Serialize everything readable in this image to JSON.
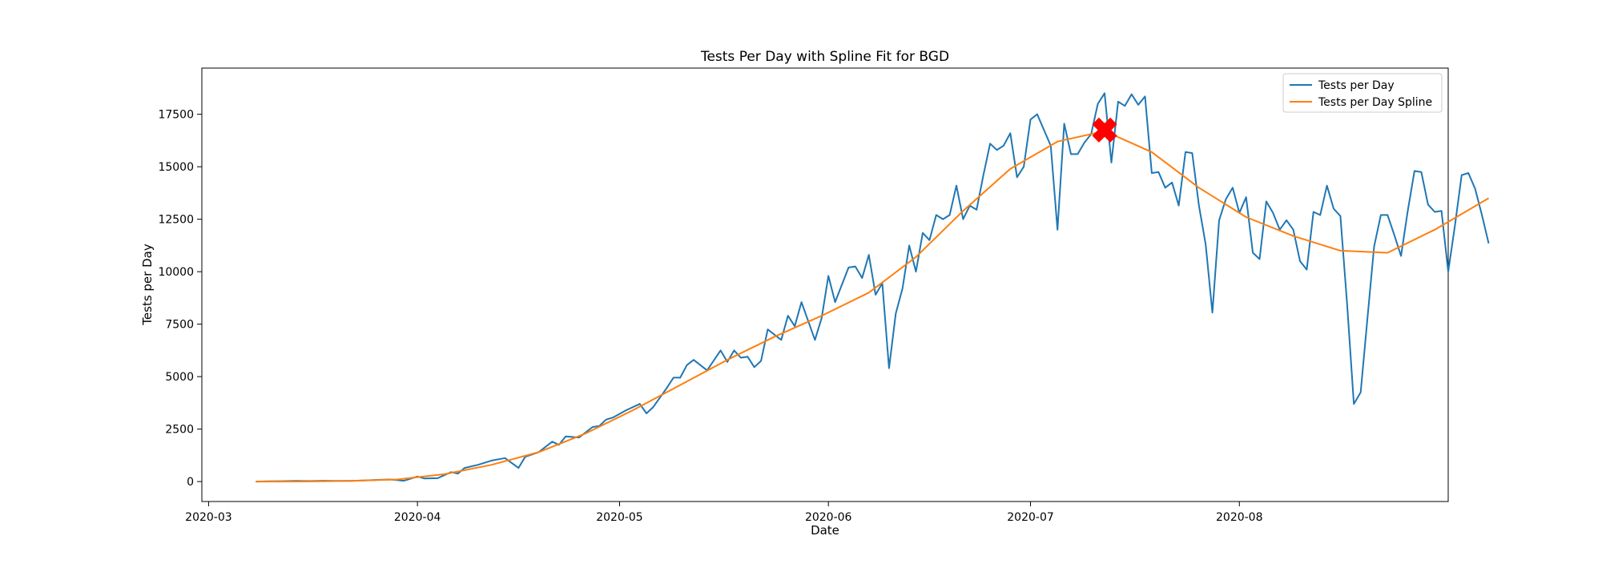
{
  "chart_data": {
    "type": "line",
    "title": "Tests Per Day with Spline Fit for BGD",
    "xlabel": "Date",
    "ylabel": "Tests per Day",
    "xlim": [
      "2020-02-29",
      "2020-09-01"
    ],
    "ylim": [
      -950,
      19700
    ],
    "grid": false,
    "legend_position": "top-right",
    "x_ticks": [
      "2020-03",
      "2020-04",
      "2020-05",
      "2020-06",
      "2020-07",
      "2020-08"
    ],
    "y_ticks": [
      0,
      2500,
      5000,
      7500,
      10000,
      12500,
      15000,
      17500
    ],
    "series": [
      {
        "name": "Tests per Day",
        "color": "#1f77b4",
        "points": [
          [
            "2020-03-08",
            0
          ],
          [
            "2020-03-10",
            10
          ],
          [
            "2020-03-12",
            20
          ],
          [
            "2020-03-14",
            30
          ],
          [
            "2020-03-16",
            25
          ],
          [
            "2020-03-18",
            40
          ],
          [
            "2020-03-20",
            35
          ],
          [
            "2020-03-22",
            30
          ],
          [
            "2020-03-24",
            50
          ],
          [
            "2020-03-26",
            80
          ],
          [
            "2020-03-28",
            100
          ],
          [
            "2020-03-30",
            40
          ],
          [
            "2020-04-01",
            240
          ],
          [
            "2020-04-02",
            150
          ],
          [
            "2020-04-04",
            160
          ],
          [
            "2020-04-06",
            450
          ],
          [
            "2020-04-07",
            380
          ],
          [
            "2020-04-08",
            650
          ],
          [
            "2020-04-10",
            800
          ],
          [
            "2020-04-12",
            1000
          ],
          [
            "2020-04-14",
            1120
          ],
          [
            "2020-04-16",
            650
          ],
          [
            "2020-04-17",
            1180
          ],
          [
            "2020-04-19",
            1400
          ],
          [
            "2020-04-21",
            1900
          ],
          [
            "2020-04-22",
            1750
          ],
          [
            "2020-04-23",
            2150
          ],
          [
            "2020-04-25",
            2100
          ],
          [
            "2020-04-27",
            2600
          ],
          [
            "2020-04-28",
            2650
          ],
          [
            "2020-04-29",
            2950
          ],
          [
            "2020-04-30",
            3050
          ],
          [
            "2020-05-02",
            3400
          ],
          [
            "2020-05-04",
            3700
          ],
          [
            "2020-05-05",
            3250
          ],
          [
            "2020-05-06",
            3550
          ],
          [
            "2020-05-08",
            4450
          ],
          [
            "2020-05-09",
            4950
          ],
          [
            "2020-05-10",
            4950
          ],
          [
            "2020-05-11",
            5550
          ],
          [
            "2020-05-12",
            5800
          ],
          [
            "2020-05-14",
            5300
          ],
          [
            "2020-05-16",
            6250
          ],
          [
            "2020-05-17",
            5700
          ],
          [
            "2020-05-18",
            6250
          ],
          [
            "2020-05-19",
            5900
          ],
          [
            "2020-05-20",
            5950
          ],
          [
            "2020-05-21",
            5450
          ],
          [
            "2020-05-22",
            5750
          ],
          [
            "2020-05-23",
            7250
          ],
          [
            "2020-05-25",
            6750
          ],
          [
            "2020-05-26",
            7900
          ],
          [
            "2020-05-27",
            7400
          ],
          [
            "2020-05-28",
            8550
          ],
          [
            "2020-05-30",
            6750
          ],
          [
            "2020-05-31",
            7800
          ],
          [
            "2020-06-01",
            9800
          ],
          [
            "2020-06-02",
            8550
          ],
          [
            "2020-06-04",
            10200
          ],
          [
            "2020-06-05",
            10250
          ],
          [
            "2020-06-06",
            9700
          ],
          [
            "2020-06-07",
            10800
          ],
          [
            "2020-06-08",
            8900
          ],
          [
            "2020-06-09",
            9450
          ],
          [
            "2020-06-10",
            5400
          ],
          [
            "2020-06-11",
            8000
          ],
          [
            "2020-06-12",
            9200
          ],
          [
            "2020-06-13",
            11250
          ],
          [
            "2020-06-14",
            10000
          ],
          [
            "2020-06-15",
            11850
          ],
          [
            "2020-06-16",
            11500
          ],
          [
            "2020-06-17",
            12700
          ],
          [
            "2020-06-18",
            12500
          ],
          [
            "2020-06-19",
            12700
          ],
          [
            "2020-06-20",
            14100
          ],
          [
            "2020-06-21",
            12500
          ],
          [
            "2020-06-22",
            13150
          ],
          [
            "2020-06-23",
            12950
          ],
          [
            "2020-06-24",
            14600
          ],
          [
            "2020-06-25",
            16100
          ],
          [
            "2020-06-26",
            15800
          ],
          [
            "2020-06-27",
            16000
          ],
          [
            "2020-06-28",
            16600
          ],
          [
            "2020-06-29",
            14500
          ],
          [
            "2020-06-30",
            15000
          ],
          [
            "2020-07-01",
            17250
          ],
          [
            "2020-07-02",
            17500
          ],
          [
            "2020-07-04",
            16000
          ],
          [
            "2020-07-05",
            12000
          ],
          [
            "2020-07-06",
            17050
          ],
          [
            "2020-07-07",
            15600
          ],
          [
            "2020-07-08",
            15600
          ],
          [
            "2020-07-09",
            16150
          ],
          [
            "2020-07-10",
            16550
          ],
          [
            "2020-07-11",
            18000
          ],
          [
            "2020-07-12",
            18500
          ],
          [
            "2020-07-13",
            15200
          ],
          [
            "2020-07-14",
            18100
          ],
          [
            "2020-07-15",
            17900
          ],
          [
            "2020-07-16",
            18450
          ],
          [
            "2020-07-17",
            17950
          ],
          [
            "2020-07-18",
            18350
          ],
          [
            "2020-07-19",
            14700
          ],
          [
            "2020-07-20",
            14750
          ],
          [
            "2020-07-21",
            14000
          ],
          [
            "2020-07-22",
            14250
          ],
          [
            "2020-07-23",
            13150
          ],
          [
            "2020-07-24",
            15700
          ],
          [
            "2020-07-25",
            15650
          ],
          [
            "2020-07-26",
            13150
          ],
          [
            "2020-07-27",
            11300
          ],
          [
            "2020-07-28",
            8050
          ],
          [
            "2020-07-29",
            12450
          ],
          [
            "2020-07-30",
            13450
          ],
          [
            "2020-07-31",
            14000
          ],
          [
            "2020-08-01",
            12800
          ],
          [
            "2020-08-02",
            13550
          ],
          [
            "2020-08-03",
            10900
          ],
          [
            "2020-08-04",
            10600
          ],
          [
            "2020-08-05",
            13350
          ],
          [
            "2020-08-06",
            12800
          ],
          [
            "2020-08-07",
            12000
          ],
          [
            "2020-08-08",
            12450
          ],
          [
            "2020-08-09",
            12000
          ],
          [
            "2020-08-10",
            10500
          ],
          [
            "2020-08-11",
            10100
          ],
          [
            "2020-08-12",
            12850
          ],
          [
            "2020-08-13",
            12700
          ],
          [
            "2020-08-14",
            14100
          ],
          [
            "2020-08-15",
            13000
          ],
          [
            "2020-08-16",
            12650
          ],
          [
            "2020-08-17",
            8450
          ],
          [
            "2020-08-18",
            3700
          ],
          [
            "2020-08-19",
            4250
          ],
          [
            "2020-08-20",
            7750
          ],
          [
            "2020-08-21",
            11200
          ],
          [
            "2020-08-22",
            12700
          ],
          [
            "2020-08-23",
            12700
          ],
          [
            "2020-08-24",
            11750
          ],
          [
            "2020-08-25",
            10750
          ],
          [
            "2020-08-26",
            12900
          ],
          [
            "2020-08-27",
            14800
          ],
          [
            "2020-08-28",
            14750
          ],
          [
            "2020-08-29",
            13200
          ],
          [
            "2020-08-30",
            12850
          ],
          [
            "2020-08-31",
            12900
          ],
          [
            "2020-09-01",
            10000
          ],
          [
            "2020-09-02",
            12200
          ],
          [
            "2020-09-03",
            14600
          ],
          [
            "2020-09-04",
            14700
          ],
          [
            "2020-09-05",
            13950
          ],
          [
            "2020-09-06",
            12700
          ],
          [
            "2020-09-07",
            11350
          ]
        ]
      },
      {
        "name": "Tests per Day Spline",
        "color": "#ff7f0e",
        "points": [
          [
            "2020-03-08",
            0
          ],
          [
            "2020-03-15",
            5
          ],
          [
            "2020-03-22",
            30
          ],
          [
            "2020-03-29",
            100
          ],
          [
            "2020-04-05",
            350
          ],
          [
            "2020-04-12",
            800
          ],
          [
            "2020-04-19",
            1400
          ],
          [
            "2020-04-26",
            2300
          ],
          [
            "2020-05-03",
            3400
          ],
          [
            "2020-05-10",
            4600
          ],
          [
            "2020-05-17",
            5800
          ],
          [
            "2020-05-24",
            6900
          ],
          [
            "2020-05-31",
            7900
          ],
          [
            "2020-06-07",
            9000
          ],
          [
            "2020-06-14",
            10700
          ],
          [
            "2020-06-21",
            12900
          ],
          [
            "2020-06-28",
            14900
          ],
          [
            "2020-07-05",
            16200
          ],
          [
            "2020-07-12",
            16700
          ],
          [
            "2020-07-19",
            15700
          ],
          [
            "2020-07-26",
            14000
          ],
          [
            "2020-08-02",
            12600
          ],
          [
            "2020-08-09",
            11700
          ],
          [
            "2020-08-16",
            11000
          ],
          [
            "2020-08-23",
            10900
          ],
          [
            "2020-08-30",
            12000
          ],
          [
            "2020-09-07",
            13500
          ]
        ]
      }
    ],
    "peak_marker": {
      "x": "2020-07-12",
      "y": 16750,
      "color": "#ff0000",
      "shape": "x"
    }
  }
}
